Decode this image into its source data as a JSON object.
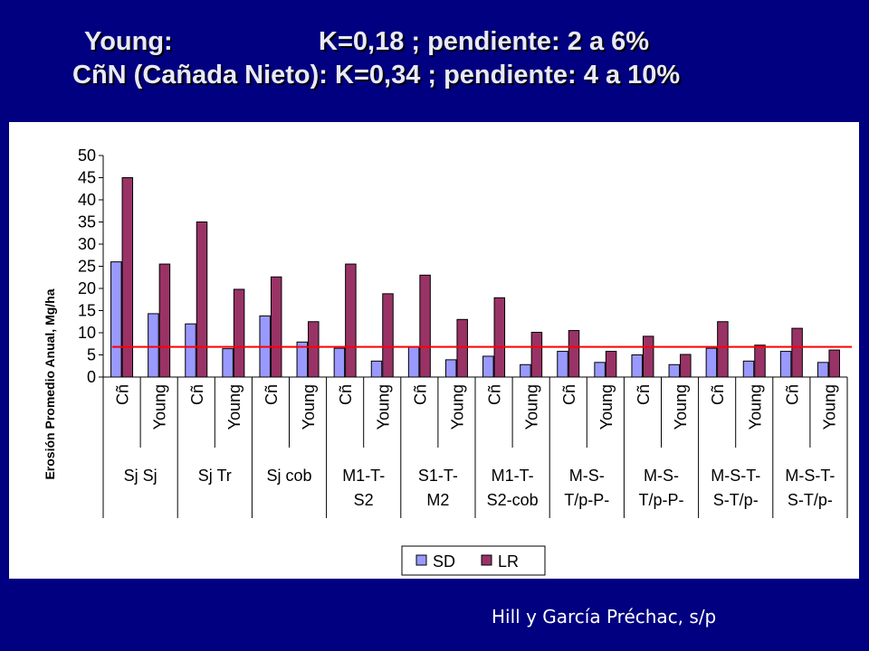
{
  "slide": {
    "title_line1_left": "Young:",
    "title_line1_right": "K=0,18 ; pendiente: 2 a 6%",
    "title_line2": "CñN (Cañada Nieto): K=0,34 ; pendiente: 4 a 10%",
    "source": "Hill y García Préchac, s/p"
  },
  "colors": {
    "background": "#000080",
    "sd": "#9999FF",
    "lr": "#993366",
    "reference_line": "#FF0000"
  },
  "chart_data": {
    "type": "bar",
    "ylabel": "Erosión Promedio Anual, Mg/ha",
    "ylim": [
      0,
      50
    ],
    "yticks": [
      0,
      5,
      10,
      15,
      20,
      25,
      30,
      35,
      40,
      45,
      50
    ],
    "grid": false,
    "legend_position": "bottom",
    "categories": [
      "Cñ",
      "Young",
      "Cñ",
      "Young",
      "Cñ",
      "Young",
      "Cñ",
      "Young",
      "Cñ",
      "Young",
      "Cñ",
      "Young",
      "Cñ",
      "Young",
      "Cñ",
      "Young",
      "Cñ",
      "Young",
      "Cñ",
      "Young"
    ],
    "groups": [
      {
        "label": [
          "Sj Sj"
        ]
      },
      {
        "label": [
          "Sj Tr"
        ]
      },
      {
        "label": [
          "Sj cob"
        ]
      },
      {
        "label": [
          "M1-T-",
          "S2"
        ]
      },
      {
        "label": [
          "S1-T-",
          "M2"
        ]
      },
      {
        "label": [
          "M1-T-",
          "S2-cob"
        ]
      },
      {
        "label": [
          "M-S-",
          "T/p-P-"
        ]
      },
      {
        "label": [
          "M-S-",
          "T/p-P-"
        ]
      },
      {
        "label": [
          "M-S-T-",
          "S-T/p-"
        ]
      },
      {
        "label": [
          "M-S-T-",
          "S-T/p-"
        ]
      }
    ],
    "series": [
      {
        "name": "SD",
        "values": [
          26,
          14.3,
          12,
          6.4,
          13.8,
          7.9,
          6.5,
          3.6,
          6.8,
          3.9,
          4.7,
          2.8,
          5.8,
          3.3,
          5,
          2.8,
          6.5,
          3.6,
          5.8,
          3.3
        ]
      },
      {
        "name": "LR",
        "values": [
          45,
          25.5,
          35,
          19.8,
          22.6,
          12.5,
          25.5,
          18.8,
          23,
          13,
          17.9,
          10.1,
          10.5,
          5.8,
          9.2,
          5.1,
          12.5,
          7.2,
          11,
          6.1
        ]
      }
    ],
    "reference_line_y": 6.8
  }
}
